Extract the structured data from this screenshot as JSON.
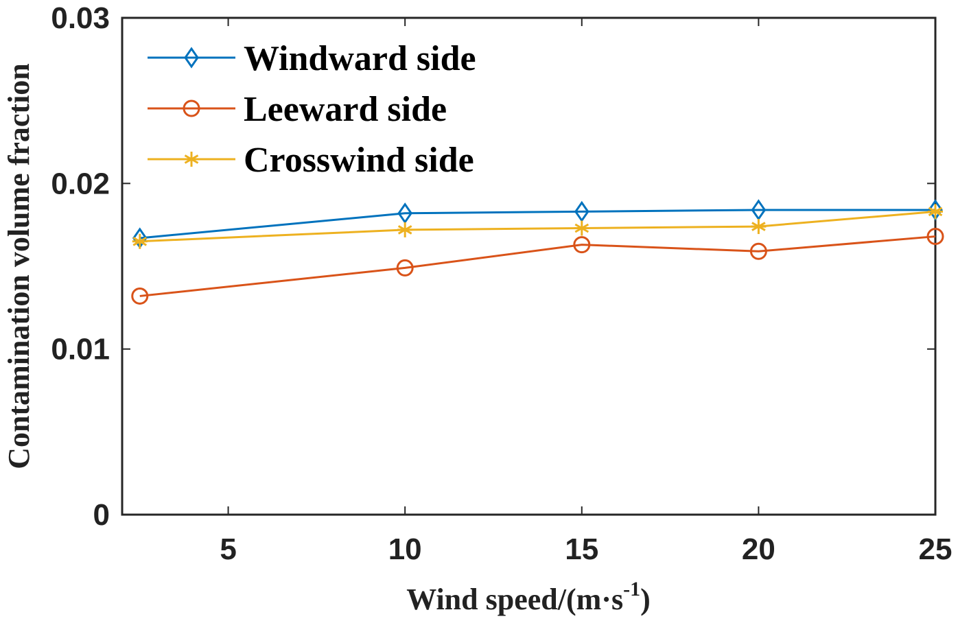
{
  "chart_data": {
    "type": "line",
    "title": "",
    "xlabel": "Wind speed/(m·s",
    "xlabel_sup": "-1",
    "xlabel_close": ")",
    "ylabel": "Contamination volume fraction",
    "xlim": [
      2,
      25
    ],
    "ylim": [
      0,
      0.03
    ],
    "xticks": [
      5,
      10,
      15,
      20,
      25
    ],
    "xtick_labels": [
      "5",
      "10",
      "15",
      "20",
      "25"
    ],
    "yticks": [
      0,
      0.01,
      0.02,
      0.03
    ],
    "ytick_labels": [
      "0",
      "0.01",
      "0.02",
      "0.03"
    ],
    "x": [
      2.5,
      10,
      15,
      20,
      25
    ],
    "legend_position": "top-left",
    "grid": false,
    "series": [
      {
        "name": "Windward side",
        "values": [
          0.0167,
          0.0182,
          0.0183,
          0.0184,
          0.0184
        ],
        "color": "#0072BD",
        "marker": "diamond"
      },
      {
        "name": "Leeward side",
        "values": [
          0.0132,
          0.0149,
          0.0163,
          0.0159,
          0.0168
        ],
        "color": "#D95319",
        "marker": "circle"
      },
      {
        "name": "Crosswind side",
        "values": [
          0.0165,
          0.0172,
          0.0173,
          0.0174,
          0.0183
        ],
        "color": "#EDB120",
        "marker": "asterisk"
      }
    ]
  }
}
